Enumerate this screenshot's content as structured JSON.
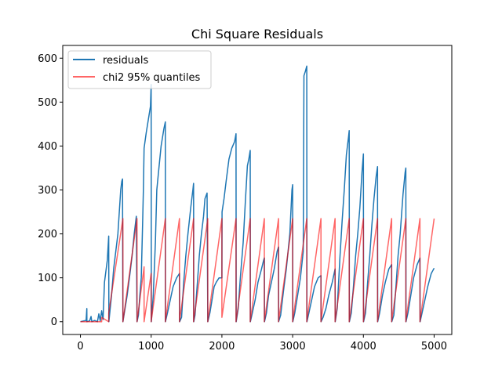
{
  "chart_data": {
    "type": "line",
    "title": "Chi Square Residuals",
    "xlabel": "",
    "ylabel": "",
    "xlim": [
      -250,
      5250
    ],
    "ylim": [
      -29,
      629
    ],
    "x_ticks": [
      0,
      1000,
      2000,
      3000,
      4000,
      5000
    ],
    "y_ticks": [
      0,
      100,
      200,
      300,
      400,
      500,
      600
    ],
    "legend_position": "top-left",
    "grid": false,
    "series": [
      {
        "name": "residuals",
        "color": "#1f77b4",
        "line_width": 1.5,
        "points": [
          [
            0,
            0
          ],
          [
            50,
            2
          ],
          [
            80,
            3
          ],
          [
            90,
            30
          ],
          [
            92,
            0
          ],
          [
            130,
            2
          ],
          [
            150,
            12
          ],
          [
            160,
            0
          ],
          [
            200,
            3
          ],
          [
            240,
            0
          ],
          [
            260,
            18
          ],
          [
            280,
            2
          ],
          [
            300,
            25
          ],
          [
            320,
            5
          ],
          [
            340,
            90
          ],
          [
            380,
            140
          ],
          [
            400,
            195
          ],
          [
            402,
            0
          ],
          [
            440,
            60
          ],
          [
            470,
            120
          ],
          [
            500,
            160
          ],
          [
            530,
            200
          ],
          [
            550,
            250
          ],
          [
            570,
            300
          ],
          [
            585,
            320
          ],
          [
            595,
            325
          ],
          [
            600,
            0
          ],
          [
            620,
            20
          ],
          [
            660,
            60
          ],
          [
            700,
            110
          ],
          [
            730,
            150
          ],
          [
            760,
            200
          ],
          [
            790,
            240
          ],
          [
            800,
            0
          ],
          [
            820,
            15
          ],
          [
            840,
            60
          ],
          [
            860,
            100
          ],
          [
            880,
            230
          ],
          [
            890,
            300
          ],
          [
            900,
            395
          ],
          [
            930,
            430
          ],
          [
            960,
            460
          ],
          [
            990,
            490
          ],
          [
            1000,
            540
          ],
          [
            1002,
            0
          ],
          [
            1030,
            60
          ],
          [
            1060,
            180
          ],
          [
            1080,
            300
          ],
          [
            1110,
            350
          ],
          [
            1140,
            400
          ],
          [
            1180,
            440
          ],
          [
            1200,
            455
          ],
          [
            1202,
            0
          ],
          [
            1230,
            20
          ],
          [
            1270,
            50
          ],
          [
            1310,
            80
          ],
          [
            1360,
            100
          ],
          [
            1400,
            110
          ],
          [
            1402,
            0
          ],
          [
            1430,
            10
          ],
          [
            1460,
            90
          ],
          [
            1490,
            150
          ],
          [
            1520,
            200
          ],
          [
            1560,
            260
          ],
          [
            1590,
            300
          ],
          [
            1600,
            315
          ],
          [
            1602,
            0
          ],
          [
            1620,
            15
          ],
          [
            1650,
            80
          ],
          [
            1680,
            150
          ],
          [
            1710,
            200
          ],
          [
            1740,
            240
          ],
          [
            1760,
            280
          ],
          [
            1790,
            293
          ],
          [
            1800,
            0
          ],
          [
            1830,
            20
          ],
          [
            1860,
            50
          ],
          [
            1890,
            80
          ],
          [
            1920,
            90
          ],
          [
            1960,
            100
          ],
          [
            2000,
            100
          ],
          [
            2002,
            250
          ],
          [
            2030,
            280
          ],
          [
            2060,
            320
          ],
          [
            2100,
            370
          ],
          [
            2140,
            395
          ],
          [
            2180,
            410
          ],
          [
            2200,
            428
          ],
          [
            2202,
            0
          ],
          [
            2230,
            30
          ],
          [
            2260,
            100
          ],
          [
            2300,
            180
          ],
          [
            2330,
            270
          ],
          [
            2360,
            355
          ],
          [
            2380,
            370
          ],
          [
            2400,
            390
          ],
          [
            2402,
            0
          ],
          [
            2430,
            20
          ],
          [
            2470,
            50
          ],
          [
            2510,
            90
          ],
          [
            2560,
            120
          ],
          [
            2590,
            140
          ],
          [
            2600,
            145
          ],
          [
            2602,
            0
          ],
          [
            2630,
            20
          ],
          [
            2660,
            60
          ],
          [
            2700,
            90
          ],
          [
            2740,
            120
          ],
          [
            2780,
            160
          ],
          [
            2800,
            170
          ],
          [
            2802,
            0
          ],
          [
            2830,
            15
          ],
          [
            2870,
            70
          ],
          [
            2910,
            120
          ],
          [
            2960,
            200
          ],
          [
            2990,
            300
          ],
          [
            3000,
            312
          ],
          [
            3002,
            0
          ],
          [
            3030,
            20
          ],
          [
            3070,
            60
          ],
          [
            3110,
            100
          ],
          [
            3150,
            160
          ],
          [
            3160,
            560
          ],
          [
            3180,
            570
          ],
          [
            3200,
            582
          ],
          [
            3202,
            0
          ],
          [
            3230,
            20
          ],
          [
            3270,
            50
          ],
          [
            3310,
            80
          ],
          [
            3360,
            100
          ],
          [
            3400,
            105
          ],
          [
            3402,
            0
          ],
          [
            3430,
            10
          ],
          [
            3470,
            30
          ],
          [
            3510,
            60
          ],
          [
            3560,
            90
          ],
          [
            3600,
            120
          ],
          [
            3602,
            0
          ],
          [
            3630,
            30
          ],
          [
            3670,
            150
          ],
          [
            3700,
            230
          ],
          [
            3730,
            300
          ],
          [
            3760,
            380
          ],
          [
            3790,
            420
          ],
          [
            3800,
            435
          ],
          [
            3802,
            0
          ],
          [
            3830,
            20
          ],
          [
            3860,
            80
          ],
          [
            3890,
            150
          ],
          [
            3920,
            200
          ],
          [
            3950,
            260
          ],
          [
            3980,
            340
          ],
          [
            4000,
            382
          ],
          [
            4002,
            0
          ],
          [
            4030,
            20
          ],
          [
            4060,
            90
          ],
          [
            4090,
            150
          ],
          [
            4120,
            220
          ],
          [
            4150,
            280
          ],
          [
            4180,
            330
          ],
          [
            4200,
            353
          ],
          [
            4202,
            0
          ],
          [
            4230,
            20
          ],
          [
            4270,
            60
          ],
          [
            4310,
            90
          ],
          [
            4360,
            120
          ],
          [
            4400,
            130
          ],
          [
            4402,
            0
          ],
          [
            4430,
            15
          ],
          [
            4460,
            80
          ],
          [
            4490,
            150
          ],
          [
            4520,
            200
          ],
          [
            4560,
            290
          ],
          [
            4590,
            340
          ],
          [
            4600,
            350
          ],
          [
            4602,
            0
          ],
          [
            4630,
            20
          ],
          [
            4670,
            60
          ],
          [
            4710,
            100
          ],
          [
            4760,
            130
          ],
          [
            4800,
            145
          ],
          [
            4802,
            0
          ],
          [
            4830,
            20
          ],
          [
            4870,
            50
          ],
          [
            4910,
            80
          ],
          [
            4960,
            110
          ],
          [
            5000,
            122
          ]
        ]
      },
      {
        "name": "chi2 95% quantiles",
        "color": "#ff0000",
        "alpha": 0.6,
        "line_width": 1.5,
        "points": [
          [
            0,
            0
          ],
          [
            300,
            0
          ],
          [
            300,
            10
          ],
          [
            400,
            0
          ],
          [
            400,
            20
          ],
          [
            600,
            235
          ],
          [
            600,
            0
          ],
          [
            800,
            235
          ],
          [
            800,
            0
          ],
          [
            900,
            125
          ],
          [
            900,
            0
          ],
          [
            1000,
            110
          ],
          [
            1000,
            0
          ],
          [
            1200,
            235
          ],
          [
            1200,
            0
          ],
          [
            1400,
            235
          ],
          [
            1400,
            0
          ],
          [
            1600,
            235
          ],
          [
            1600,
            0
          ],
          [
            1800,
            235
          ],
          [
            1800,
            0
          ],
          [
            2000,
            235
          ],
          [
            2000,
            10
          ],
          [
            2200,
            235
          ],
          [
            2200,
            0
          ],
          [
            2400,
            235
          ],
          [
            2400,
            0
          ],
          [
            2600,
            235
          ],
          [
            2600,
            0
          ],
          [
            2800,
            235
          ],
          [
            2800,
            0
          ],
          [
            3000,
            235
          ],
          [
            3000,
            0
          ],
          [
            3200,
            235
          ],
          [
            3200,
            0
          ],
          [
            3400,
            235
          ],
          [
            3400,
            0
          ],
          [
            3600,
            235
          ],
          [
            3600,
            0
          ],
          [
            3800,
            235
          ],
          [
            3800,
            0
          ],
          [
            4000,
            235
          ],
          [
            4000,
            0
          ],
          [
            4200,
            235
          ],
          [
            4200,
            0
          ],
          [
            4400,
            235
          ],
          [
            4400,
            0
          ],
          [
            4600,
            235
          ],
          [
            4600,
            0
          ],
          [
            4800,
            235
          ],
          [
            4800,
            0
          ],
          [
            5000,
            235
          ]
        ]
      }
    ]
  }
}
